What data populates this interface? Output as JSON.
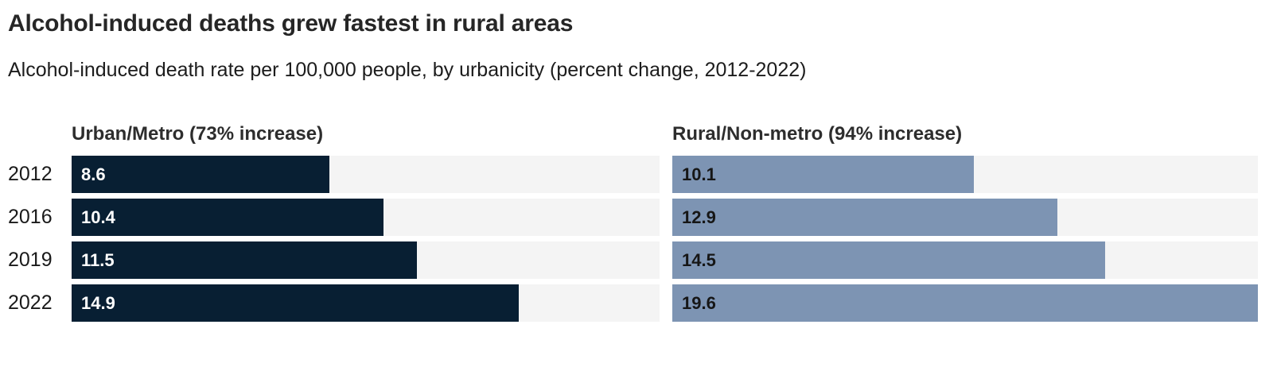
{
  "title": "Alcohol-induced deaths grew fastest in rural areas",
  "subtitle": "Alcohol-induced death rate per 100,000 people, by urbanicity (percent change, 2012-2022)",
  "chart_data": {
    "type": "bar",
    "orientation": "horizontal",
    "categories": [
      "2012",
      "2016",
      "2019",
      "2022"
    ],
    "series": [
      {
        "name": "Urban/Metro (73% increase)",
        "values": [
          8.6,
          10.4,
          11.5,
          14.9
        ],
        "bar_color": "#081f33",
        "label_color": "#ffffff"
      },
      {
        "name": "Rural/Non-metro (94% increase)",
        "values": [
          10.1,
          12.9,
          14.5,
          19.6
        ],
        "bar_color": "#7d94b3",
        "label_color": "#161616"
      }
    ],
    "value_labels_inside_bars": true,
    "xlim": [
      0,
      19.6
    ],
    "track_color": "#f4f4f4",
    "grid": false,
    "legend_position": "column-headers-above-each-panel"
  }
}
